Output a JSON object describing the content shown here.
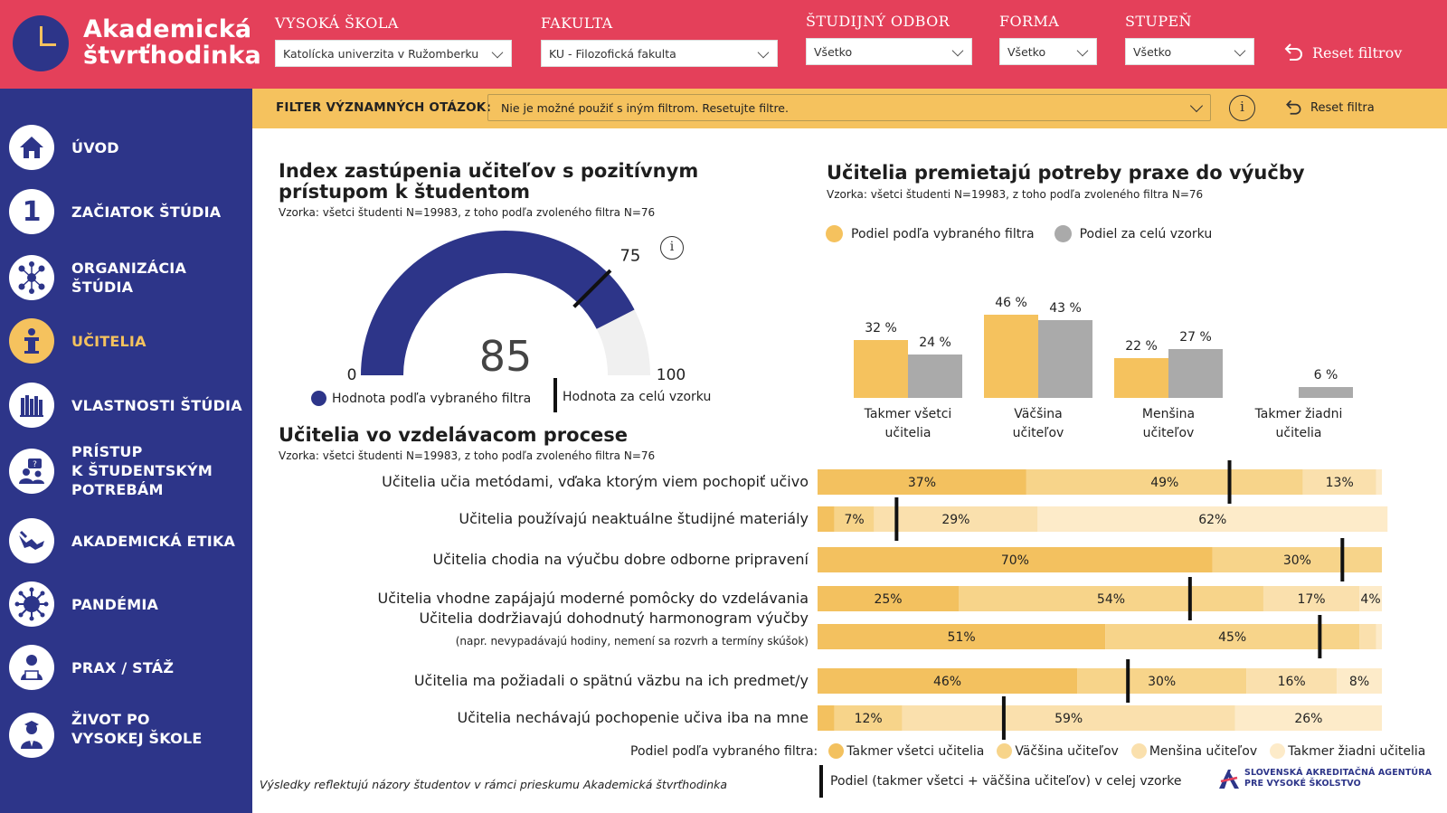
{
  "header": {
    "logo_line1": "Akademická",
    "logo_line2": "štvrťhodinka",
    "filters": [
      {
        "label": "VYSOKÁ ŠKOLA",
        "value": "Katolícka univerzita v Ružomberku"
      },
      {
        "label": "FAKULTA",
        "value": "KU - Filozofická fakulta"
      },
      {
        "label": "ŠTUDIJNÝ ODBOR",
        "value": "Všetko"
      },
      {
        "label": "FORMA",
        "value": "Všetko"
      },
      {
        "label": "STUPEŇ",
        "value": "Všetko"
      }
    ],
    "reset_label": "Reset filtrov"
  },
  "question_filter": {
    "label": "FILTER VÝZNAMNÝCH OTÁZOK:",
    "value": "Nie je možné použiť s iným filtrom. Resetujte filtre.",
    "info_glyph": "i",
    "reset_label": "Reset filtra"
  },
  "sidebar": {
    "items": [
      {
        "label": "ÚVOD",
        "icon": "home-icon"
      },
      {
        "label": "ZAČIATOK ŠTÚDIA",
        "icon": "number-one-icon",
        "glyph": "1"
      },
      {
        "label": "ORGANIZÁCIA ŠTÚDIA",
        "icon": "network-icon"
      },
      {
        "label": "UČITELIA",
        "icon": "lecturer-icon",
        "active": true
      },
      {
        "label": "VLASTNOSTI ŠTÚDIA",
        "icon": "books-icon"
      },
      {
        "label_lines": [
          "PRÍSTUP",
          "K ŠTUDENTSKÝM",
          "POTREBÁM"
        ],
        "icon": "students-help-icon"
      },
      {
        "label": "AKADEMICKÁ ETIKA",
        "icon": "hands-icon"
      },
      {
        "label": "PANDÉMIA",
        "icon": "virus-icon"
      },
      {
        "label": "PRAX / STÁŽ",
        "icon": "worker-laptop-icon"
      },
      {
        "label_lines": [
          "ŽIVOT PO",
          "VYSOKEJ ŠKOLE"
        ],
        "icon": "graduate-icon"
      }
    ]
  },
  "colors": {
    "header_red": "#e4405a",
    "navy": "#2d3589",
    "yellow": "#f5c25e",
    "gray": "#aaaaaa",
    "stack": [
      "#f3c15f",
      "#f7d48a",
      "#fae0ad",
      "#fdebc9"
    ]
  },
  "gauge": {
    "title_line1": "Index zastúpenia učiteľov s pozitívnym",
    "title_line2": "prístupom k študentom",
    "subtitle": "Vzorka: všetci študenti N=19983, z toho podľa zvoleného filtra N=76",
    "value": 85,
    "value_text": "85",
    "marker": 75,
    "marker_text": "75",
    "min": 0,
    "max": 100,
    "min_text": "0",
    "max_text": "100",
    "legend_filter": "Hodnota podľa vybraného filtra",
    "legend_total": "Hodnota za celú vzorku",
    "info_glyph": "i"
  },
  "practice": {
    "title": "Učitelia premietajú potreby praxe do výučby",
    "subtitle": "Vzorka: všetci študenti N=19983, z toho podľa zvoleného filtra N=76",
    "legend": [
      "Podiel podľa vybraného filtra",
      "Podiel za celú vzorku"
    ]
  },
  "process": {
    "title": "Učitelia vo vzdelávacom procese",
    "subtitle": "Vzorka: všetci študenti N=19983, z toho podľa zvoleného filtra N=76",
    "legend_prefix": "Podiel podľa vybraného filtra:",
    "legend_items": [
      "Takmer všetci učitelia",
      "Väčšina učiteľov",
      "Menšina učiteľov",
      "Takmer žiadni učitelia"
    ],
    "marker_legend": "Podiel (takmer všetci + väčšina učiteľov) v celej vzorke"
  },
  "chart_data": [
    {
      "type": "bar",
      "title": "Učitelia premietajú potreby praxe do výučby",
      "categories": [
        [
          "Takmer všetci",
          "učitelia"
        ],
        [
          "Väčšina",
          "učiteľov"
        ],
        [
          "Menšina",
          "učiteľov"
        ],
        [
          "Takmer žiadni",
          "učitelia"
        ]
      ],
      "series": [
        {
          "name": "Podiel podľa vybraného filtra",
          "values": [
            32,
            46,
            22,
            0
          ],
          "labels": [
            "32 %",
            "46 %",
            "22 %",
            ""
          ]
        },
        {
          "name": "Podiel za celú vzorku",
          "values": [
            24,
            43,
            27,
            6
          ],
          "labels": [
            "24 %",
            "43 %",
            "27 %",
            "6 %"
          ]
        }
      ],
      "ylim": [
        0,
        50
      ]
    },
    {
      "type": "bar",
      "orientation": "horizontal-stacked",
      "title": "Učitelia vo vzdelávacom procese",
      "rows": [
        {
          "label": "Učitelia učia metódami, vďaka ktorým viem pochopiť učivo",
          "values": [
            37,
            49,
            13,
            1
          ],
          "labels": [
            "37%",
            "49%",
            "13%",
            ""
          ],
          "marker": 73
        },
        {
          "label": "Učitelia používajú neaktuálne študijné materiály",
          "values": [
            3,
            7,
            29,
            62
          ],
          "labels": [
            "",
            "7%",
            "29%",
            "62%"
          ],
          "marker": 14
        },
        {
          "label": "Učitelia chodia na výučbu dobre odborne pripravení",
          "values": [
            70,
            30,
            0,
            0
          ],
          "labels": [
            "70%",
            "30%",
            "",
            ""
          ],
          "marker": 93
        },
        {
          "label": "Učitelia vhodne zapájajú moderné pomôcky do vzdelávania",
          "values": [
            25,
            54,
            17,
            4
          ],
          "labels": [
            "25%",
            "54%",
            "17%",
            "4%"
          ],
          "marker": 66
        },
        {
          "label": "Učitelia dodržiavajú dohodnutý harmonogram výučby",
          "note": "(napr. nevypadávajú hodiny, nemení sa rozvrh a termíny skúšok)",
          "values": [
            51,
            45,
            3,
            1
          ],
          "labels": [
            "51%",
            "45%",
            "",
            ""
          ],
          "marker": 89
        },
        {
          "label": "Učitelia ma požiadali o spätnú väzbu na ich predmet/y",
          "values": [
            46,
            30,
            16,
            8
          ],
          "labels": [
            "46%",
            "30%",
            "16%",
            "8%"
          ],
          "marker": 55
        },
        {
          "label": "Učitelia nechávajú pochopenie učiva iba na mne",
          "values": [
            3,
            12,
            59,
            26
          ],
          "labels": [
            "",
            "12%",
            "59%",
            "26%"
          ],
          "marker": 33
        }
      ],
      "xlim": [
        0,
        100
      ]
    }
  ],
  "footer": {
    "note": "Výsledky reflektujú názory študentov v rámci prieskumu Akademická štvrťhodinka",
    "agency_line1": "SLOVENSKÁ AKREDITAČNÁ AGENTÚRA",
    "agency_line2": "PRE VYSOKÉ ŠKOLSTVO"
  }
}
